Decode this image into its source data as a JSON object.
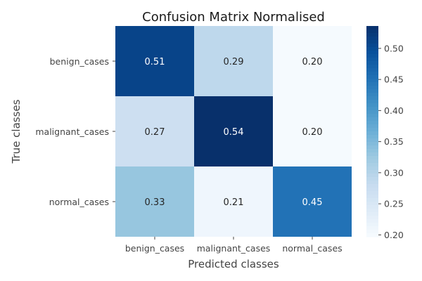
{
  "chart_data": {
    "type": "heatmap",
    "title": "Confusion Matrix Normalised",
    "xlabel": "Predicted classes",
    "ylabel": "True classes",
    "x_categories": [
      "benign_cases",
      "malignant_cases",
      "normal_cases"
    ],
    "y_categories": [
      "benign_cases",
      "malignant_cases",
      "normal_cases"
    ],
    "values": [
      [
        0.51,
        0.29,
        0.2
      ],
      [
        0.27,
        0.54,
        0.2
      ],
      [
        0.33,
        0.21,
        0.45
      ]
    ],
    "value_labels": [
      [
        "0.51",
        "0.29",
        "0.20"
      ],
      [
        "0.27",
        "0.54",
        "0.20"
      ],
      [
        "0.33",
        "0.21",
        "0.45"
      ]
    ],
    "colorbar": {
      "min": 0.197,
      "max": 0.536,
      "ticks": [
        "0.20",
        "0.25",
        "0.30",
        "0.35",
        "0.40",
        "0.45",
        "0.50"
      ],
      "tick_values": [
        0.2,
        0.25,
        0.3,
        0.35,
        0.4,
        0.45,
        0.5
      ]
    },
    "colormap": "Blues"
  }
}
